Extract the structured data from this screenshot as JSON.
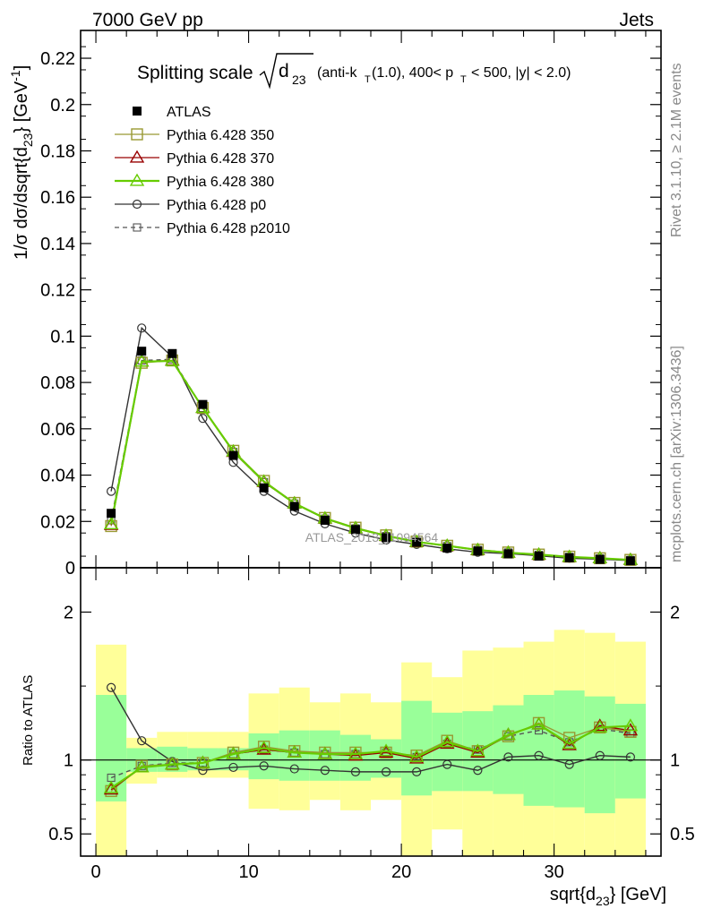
{
  "header": {
    "left": "7000 GeV pp",
    "right": "Jets"
  },
  "side": {
    "rivet": "Rivet 3.1.10, ≥ 2.1M events",
    "mcplots": "mcplots.cern.ch [arXiv:1306.3436]"
  },
  "watermark": "ATLAS_2013_I1094564",
  "title": {
    "prefix": "Splitting scale",
    "radicand": "d",
    "radicand_sub": "23",
    "suffix_1": "(anti-k",
    "suffix_1_sub": "T",
    "suffix_2": "(1.0), 400< p",
    "suffix_2_sub": "T",
    "suffix_3": "< 500, |y| < 2.0)"
  },
  "ylabel_main": {
    "part1": "1/σ dσ/dsqrt{d",
    "sub": "23",
    "part2": "} [GeV",
    "sup": "-1",
    "part3": "]"
  },
  "ylabel_ratio": "Ratio to ATLAS",
  "xlabel": {
    "part1": "sqrt{d",
    "sub": "23",
    "part2": "} [GeV]"
  },
  "chart_data": [
    {
      "type": "line",
      "panel": "main",
      "x": [
        1,
        3,
        5,
        7,
        9,
        11,
        13,
        15,
        17,
        19,
        21,
        23,
        25,
        27,
        29,
        31,
        33,
        35
      ],
      "xlim": [
        -1,
        37
      ],
      "ylim": [
        0,
        0.232
      ],
      "yticks": [
        0,
        0.02,
        0.04,
        0.06,
        0.08,
        0.1,
        0.12,
        0.14,
        0.16,
        0.18,
        0.2,
        0.22
      ],
      "ytick_labels": [
        "0",
        "0.02",
        "0.04",
        "0.06",
        "0.08",
        "0.1",
        "0.12",
        "0.14",
        "0.16",
        "0.18",
        "0.2",
        "0.22"
      ],
      "series": [
        {
          "name": "ATLAS",
          "style": "data",
          "color": "#000000",
          "values": [
            0.0235,
            0.0935,
            0.0925,
            0.0705,
            0.0485,
            0.0345,
            0.0265,
            0.0205,
            0.0165,
            0.013,
            0.011,
            0.0085,
            0.0072,
            0.006,
            0.005,
            0.0043,
            0.0036,
            0.003
          ]
        },
        {
          "name": "Pythia 6.428 350",
          "style": "square",
          "color": "#999933",
          "values": [
            0.018,
            0.0885,
            0.0895,
            0.069,
            0.0505,
            0.0375,
            0.028,
            0.0215,
            0.0173,
            0.014,
            0.0113,
            0.0095,
            0.0078,
            0.0066,
            0.0057,
            0.0048,
            0.0041,
            0.0034
          ]
        },
        {
          "name": "Pythia 6.428 370",
          "style": "triangle",
          "color": "#990000",
          "values": [
            0.0185,
            0.089,
            0.0895,
            0.069,
            0.05,
            0.037,
            0.0278,
            0.0212,
            0.017,
            0.0137,
            0.0111,
            0.0094,
            0.0076,
            0.0065,
            0.0056,
            0.0046,
            0.0041,
            0.0034
          ]
        },
        {
          "name": "Pythia 6.428 380",
          "style": "triangle",
          "color": "#66cc00",
          "values": [
            0.0188,
            0.089,
            0.0893,
            0.069,
            0.0502,
            0.0372,
            0.0278,
            0.0213,
            0.0171,
            0.0138,
            0.0112,
            0.0095,
            0.0077,
            0.0065,
            0.0057,
            0.0047,
            0.0041,
            0.0034
          ]
        },
        {
          "name": "Pythia 6.428 p0",
          "style": "circle",
          "color": "#333333",
          "values": [
            0.033,
            0.1035,
            0.091,
            0.0645,
            0.0455,
            0.033,
            0.0245,
            0.019,
            0.015,
            0.012,
            0.0101,
            0.0082,
            0.0067,
            0.0061,
            0.0052,
            0.0041,
            0.0037,
            0.0031
          ]
        },
        {
          "name": "Pythia 6.428 p2010",
          "style": "dashed-square",
          "color": "#555555",
          "values": [
            0.0205,
            0.0895,
            0.09,
            0.069,
            0.05,
            0.037,
            0.0277,
            0.0212,
            0.017,
            0.0137,
            0.0112,
            0.0094,
            0.0077,
            0.0066,
            0.0056,
            0.0047,
            0.0041,
            0.0034
          ]
        }
      ]
    },
    {
      "type": "line",
      "panel": "ratio",
      "ylabel": "Ratio to ATLAS",
      "x": [
        1,
        3,
        5,
        7,
        9,
        11,
        13,
        15,
        17,
        19,
        21,
        23,
        25,
        27,
        29,
        31,
        33,
        35
      ],
      "xlim": [
        -1,
        37
      ],
      "ylim": [
        0.35,
        2.3
      ],
      "yticks": [
        0.5,
        1,
        2
      ],
      "ytick_labels": [
        "0.5",
        "1",
        "2"
      ],
      "xticks": [
        0,
        10,
        20,
        30
      ],
      "xtick_labels": [
        "0",
        "10",
        "20",
        "30"
      ],
      "bands": {
        "edges": [
          0,
          2,
          4,
          6,
          8,
          10,
          12,
          14,
          16,
          18,
          20,
          22,
          24,
          26,
          28,
          30,
          32,
          34,
          36
        ],
        "inner_lo": [
          0.72,
          0.92,
          0.92,
          0.93,
          0.93,
          0.87,
          0.86,
          0.86,
          0.86,
          0.88,
          0.76,
          0.79,
          0.79,
          0.77,
          0.69,
          0.68,
          0.64,
          0.74
        ],
        "inner_hi": [
          1.44,
          1.08,
          1.09,
          1.08,
          1.08,
          1.18,
          1.2,
          1.2,
          1.17,
          1.14,
          1.4,
          1.32,
          1.33,
          1.37,
          1.44,
          1.47,
          1.43,
          1.38
        ],
        "outer_lo": [
          0.35,
          0.84,
          0.88,
          0.88,
          0.88,
          0.67,
          0.66,
          0.73,
          0.66,
          0.73,
          0.35,
          0.53,
          0.35,
          0.35,
          0.35,
          0.35,
          0.35,
          0.35
        ],
        "outer_hi": [
          1.78,
          1.15,
          1.19,
          1.19,
          1.19,
          1.45,
          1.49,
          1.39,
          1.45,
          1.39,
          1.66,
          1.56,
          1.74,
          1.76,
          1.8,
          1.88,
          1.86,
          1.8
        ],
        "inner_color": "#99ff99",
        "outer_color": "#ffff99"
      },
      "series": [
        {
          "name": "Pythia 6.428 350",
          "style": "square",
          "color": "#999933",
          "values": [
            0.79,
            0.96,
            0.97,
            0.98,
            1.05,
            1.09,
            1.06,
            1.05,
            1.05,
            1.05,
            1.03,
            1.13,
            1.06,
            1.16,
            1.25,
            1.15,
            1.22,
            1.19
          ]
        },
        {
          "name": "Pythia 6.428 370",
          "style": "triangle",
          "color": "#990000",
          "values": [
            0.8,
            0.95,
            0.97,
            0.98,
            1.04,
            1.07,
            1.05,
            1.04,
            1.03,
            1.05,
            1.01,
            1.11,
            1.05,
            1.17,
            1.24,
            1.1,
            1.23,
            1.2
          ]
        },
        {
          "name": "Pythia 6.428 380",
          "style": "triangle",
          "color": "#66cc00",
          "values": [
            0.81,
            0.95,
            0.97,
            0.98,
            1.04,
            1.08,
            1.05,
            1.04,
            1.04,
            1.06,
            1.02,
            1.12,
            1.06,
            1.17,
            1.24,
            1.11,
            1.22,
            1.23
          ]
        },
        {
          "name": "Pythia 6.428 p0",
          "style": "circle",
          "color": "#333333",
          "values": [
            1.49,
            1.13,
            0.99,
            0.93,
            0.95,
            0.96,
            0.94,
            0.93,
            0.92,
            0.92,
            0.92,
            0.97,
            0.93,
            1.02,
            1.03,
            0.97,
            1.03,
            1.02
          ]
        },
        {
          "name": "Pythia 6.428 p2010",
          "style": "dashed-square",
          "color": "#555555",
          "values": [
            0.88,
            0.96,
            0.98,
            0.98,
            1.04,
            1.07,
            1.05,
            1.04,
            1.04,
            1.05,
            1.02,
            1.11,
            1.07,
            1.16,
            1.2,
            1.12,
            1.21,
            1.18
          ]
        }
      ]
    }
  ]
}
